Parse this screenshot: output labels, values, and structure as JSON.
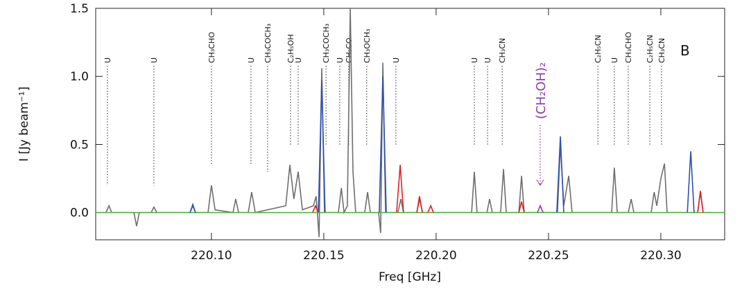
{
  "chart_data": {
    "type": "line",
    "xlabel": "Freq [GHz]",
    "ylabel": "I [Jy beam⁻¹]",
    "panel_label": "B",
    "xlim": [
      220.0485,
      220.3284
    ],
    "ylim": [
      -0.2,
      1.5
    ],
    "xticks": [
      {
        "value": 220.1,
        "label": "220.10"
      },
      220.15,
      {
        "value": 220.2,
        "label": "220.20"
      },
      220.25,
      {
        "value": 220.3,
        "label": "220.30"
      }
    ],
    "yticks": [
      {
        "value": 0,
        "label": "0.0"
      },
      0.5,
      {
        "value": 1,
        "label": "1.0"
      },
      1.5
    ],
    "series": [
      {
        "color": "#6e6e6e",
        "x": [
          220.0485,
          220.0531,
          220.0544,
          220.0556,
          220.0655,
          220.0667,
          220.0679,
          220.0732,
          220.0744,
          220.0757,
          220.0905,
          220.0917,
          220.0929,
          220.0985,
          220.1,
          220.1016,
          220.1096,
          220.1108,
          220.1121,
          220.1164,
          220.1179,
          220.1195,
          220.1331,
          220.1349,
          220.1367,
          220.1386,
          220.1405,
          220.1454,
          220.1466,
          220.1479,
          220.1491,
          220.1503,
          220.1565,
          220.1578,
          220.159,
          220.1605,
          220.1618,
          220.163,
          220.1642,
          220.1682,
          220.1695,
          220.1707,
          220.1744,
          220.1753,
          220.1763,
          220.1775,
          220.183,
          220.1843,
          220.1855,
          220.1914,
          220.1926,
          220.1939,
          220.2158,
          220.217,
          220.2182,
          220.2226,
          220.2238,
          220.225,
          220.2287,
          220.23,
          220.2312,
          220.2368,
          220.238,
          220.2392,
          220.254,
          220.2553,
          220.2568,
          220.259,
          220.2605,
          220.2781,
          220.2793,
          220.2806,
          220.2855,
          220.2868,
          220.288,
          220.2957,
          220.297,
          220.2982,
          220.3,
          220.3016,
          220.3028,
          220.3164,
          220.3176,
          220.3188,
          220.3222
        ],
        "values": [
          0,
          0,
          0.05,
          0,
          0,
          -0.1,
          0,
          0,
          0.04,
          0,
          0,
          0.05,
          0,
          0,
          0.2,
          0.02,
          0,
          0.1,
          0,
          0,
          0.15,
          0,
          0.05,
          0.35,
          0.1,
          0.3,
          0.02,
          0.05,
          0.12,
          -0.18,
          1.06,
          0,
          0,
          0.18,
          0,
          0.05,
          1.5,
          0.3,
          0,
          0,
          0.15,
          0,
          0,
          -0.15,
          1.1,
          0,
          0,
          0.1,
          0,
          0,
          0.1,
          0,
          0,
          0.3,
          0,
          0,
          0.1,
          0,
          0,
          0.32,
          0,
          0,
          0.27,
          0,
          0,
          0.5,
          0.05,
          0.27,
          0,
          0,
          0.33,
          0,
          0,
          0.1,
          0,
          0,
          0.15,
          0.05,
          0.25,
          0.36,
          0,
          0,
          0.15,
          0,
          0
        ]
      },
      {
        "color": "#4cb83c",
        "x": [
          220.0485,
          220.3284
        ],
        "values": [
          0,
          0
        ]
      },
      {
        "color": "#2f4fb0",
        "x": [
          220.0905,
          220.0917,
          220.0929,
          220.0929,
          220.1476,
          220.1491,
          220.1506,
          220.1506,
          220.1747,
          220.1763,
          220.1778,
          220.1778,
          220.2537,
          220.2553,
          220.2568,
          220.2568,
          220.3118,
          220.3133,
          220.3148
        ],
        "values": [
          0,
          0.06,
          0,
          null,
          0,
          0.97,
          0,
          null,
          0,
          1.0,
          0,
          null,
          0,
          0.56,
          0,
          null,
          0,
          0.45,
          0
        ]
      },
      {
        "color": "#e02020",
        "x": [
          220.1451,
          220.1463,
          220.1476,
          220.1476,
          220.1824,
          220.184,
          220.1855,
          220.1855,
          220.1914,
          220.1926,
          220.1939,
          220.1939,
          220.1963,
          220.1976,
          220.1988,
          220.1988,
          220.2368,
          220.238,
          220.2392,
          220.2392,
          220.3164,
          220.3176,
          220.3188
        ],
        "values": [
          0,
          0.05,
          0,
          null,
          0,
          0.35,
          0,
          null,
          0,
          0.12,
          0,
          null,
          0,
          0.05,
          0,
          null,
          0,
          0.08,
          0,
          null,
          0,
          0.16,
          0
        ]
      },
      {
        "color": "#8a3fa8",
        "x": [
          220.2451,
          220.2463,
          220.2476
        ],
        "values": [
          0,
          0.05,
          0
        ]
      }
    ],
    "lines": [
      {
        "x": 220.0537,
        "y": 0.2,
        "label": "U"
      },
      {
        "x": 220.0744,
        "y": 0.2,
        "label": "U"
      },
      {
        "x": 220.1,
        "y": 0.35,
        "label": "CH₃CHO"
      },
      {
        "x": 220.1176,
        "y": 0.35,
        "label": "U"
      },
      {
        "x": 220.125,
        "y": 0.3,
        "label": "CH₃COCH₃"
      },
      {
        "x": 220.1352,
        "y": 0.5,
        "label": "C₂H₅OH"
      },
      {
        "x": 220.1386,
        "y": 0.5,
        "label": "U"
      },
      {
        "x": 220.151,
        "y": 0.5,
        "label": "CH₃COCH₃"
      },
      {
        "x": 220.1571,
        "y": 0.5,
        "label": "U"
      },
      {
        "x": 220.1611,
        "y": 0.5,
        "label": "CH₂CO"
      },
      {
        "x": 220.1691,
        "y": 0.5,
        "label": "CH₃OCH₃"
      },
      {
        "x": 220.1821,
        "y": 0.5,
        "label": "U"
      },
      {
        "x": 220.217,
        "y": 0.5,
        "label": "U"
      },
      {
        "x": 220.2229,
        "y": 0.5,
        "label": "U"
      },
      {
        "x": 220.2294,
        "y": 0.5,
        "label": "CH₃CN"
      },
      {
        "x": 220.272,
        "y": 0.5,
        "label": "C₂H₅CN"
      },
      {
        "x": 220.2793,
        "y": 0.5,
        "label": "U"
      },
      {
        "x": 220.2855,
        "y": 0.5,
        "label": "CH₃CHO"
      },
      {
        "x": 220.2951,
        "y": 0.5,
        "label": "C₂H₅CN"
      },
      {
        "x": 220.3003,
        "y": 0.5,
        "label": "CH₃CN"
      }
    ],
    "arrow": {
      "x": 220.2463,
      "y": 0.2,
      "label": "(CH₂OH)₂",
      "color": "#8a3fa8"
    }
  }
}
